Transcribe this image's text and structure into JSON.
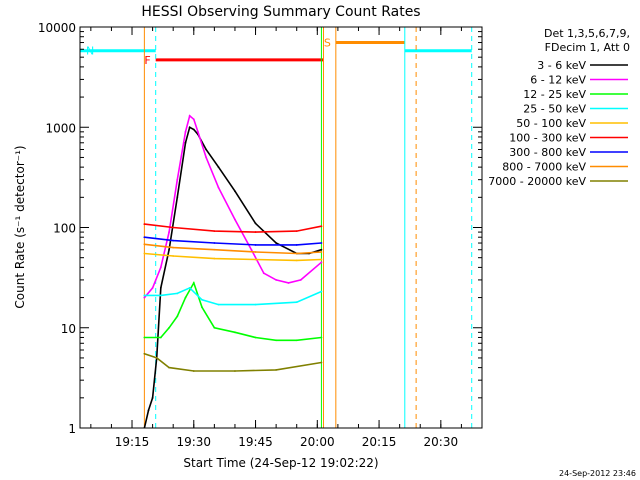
{
  "chart_data": {
    "type": "line",
    "title": "HESSI Observing Summary Count Rates",
    "xlabel": "Start Time (24-Sep-12 19:02:22)",
    "ylabel": "Count Rate (s⁻¹ detector⁻¹)",
    "y_scale": "log",
    "ylim": [
      1,
      10000
    ],
    "xlim": [
      "19:02:22",
      "20:40:00"
    ],
    "x_ticks": [
      "19:15",
      "19:30",
      "19:45",
      "20:00",
      "20:15",
      "20:30"
    ],
    "y_ticks": [
      "1",
      "10",
      "100",
      "1000",
      "10000"
    ],
    "legend_position": "top-right",
    "legend_header": [
      "Det 1,3,5,6,7,9,",
      "FDecim 1, Att 0"
    ],
    "timestamp": "24-Sep-2012 23:46",
    "series": [
      {
        "name": "3 - 6 keV",
        "color": "#000000",
        "x": [
          "19:18",
          "19:19",
          "19:20",
          "19:21",
          "19:22",
          "19:24",
          "19:26",
          "19:28",
          "19:29",
          "19:30",
          "19:31",
          "19:33",
          "19:36",
          "19:40",
          "19:45",
          "19:50",
          "19:55",
          "19:58",
          "20:01"
        ],
        "values": [
          1,
          1.5,
          2,
          5,
          25,
          60,
          200,
          700,
          1000,
          950,
          850,
          600,
          400,
          230,
          110,
          70,
          55,
          55,
          60
        ]
      },
      {
        "name": "6 - 12 keV",
        "color": "#ff00ff",
        "x": [
          "19:18",
          "19:20",
          "19:22",
          "19:24",
          "19:26",
          "19:28",
          "19:29",
          "19:30",
          "19:31",
          "19:33",
          "19:36",
          "19:40",
          "19:44",
          "19:47",
          "19:50",
          "19:53",
          "19:56",
          "20:01"
        ],
        "values": [
          20,
          25,
          40,
          90,
          300,
          900,
          1300,
          1200,
          900,
          500,
          250,
          120,
          60,
          35,
          30,
          28,
          30,
          45
        ]
      },
      {
        "name": "12 - 25 keV",
        "color": "#00ff00",
        "x": [
          "19:18",
          "19:22",
          "19:24",
          "19:26",
          "19:28",
          "19:30",
          "19:32",
          "19:35",
          "19:40",
          "19:45",
          "19:50",
          "19:55",
          "20:01"
        ],
        "values": [
          8,
          8,
          10,
          13,
          20,
          28,
          16,
          10,
          9,
          8,
          7.5,
          7.5,
          8
        ]
      },
      {
        "name": "25 - 50 keV",
        "color": "#00ffff",
        "x": [
          "19:18",
          "19:22",
          "19:26",
          "19:29",
          "19:32",
          "19:36",
          "19:45",
          "19:55",
          "20:01"
        ],
        "values": [
          21,
          21,
          22,
          25,
          19,
          17,
          17,
          18,
          23
        ]
      },
      {
        "name": "50 - 100 keV",
        "color": "#ffbf00",
        "x": [
          "19:18",
          "19:25",
          "19:35",
          "19:45",
          "19:55",
          "20:01"
        ],
        "values": [
          55,
          52,
          49,
          48,
          47,
          48
        ]
      },
      {
        "name": "100 - 300 keV",
        "color": "#ff0000",
        "x": [
          "19:18",
          "19:25",
          "19:35",
          "19:45",
          "19:55",
          "20:01"
        ],
        "values": [
          108,
          100,
          92,
          90,
          92,
          103
        ]
      },
      {
        "name": "300 - 800 keV",
        "color": "#0000ff",
        "x": [
          "19:18",
          "19:25",
          "19:35",
          "19:45",
          "19:55",
          "20:01"
        ],
        "values": [
          80,
          74,
          70,
          67,
          67,
          70
        ]
      },
      {
        "name": "800 - 7000 keV",
        "color": "#ff8c00",
        "x": [
          "19:18",
          "19:25",
          "19:35",
          "19:45",
          "19:55",
          "20:01"
        ],
        "values": [
          68,
          63,
          60,
          57,
          55,
          57
        ]
      },
      {
        "name": "7000 - 20000 keV",
        "color": "#808000",
        "x": [
          "19:18",
          "19:21",
          "19:24",
          "19:30",
          "19:40",
          "19:50",
          "20:01"
        ],
        "values": [
          5.5,
          5,
          4,
          3.7,
          3.7,
          3.8,
          4.5
        ]
      }
    ],
    "flags": [
      {
        "label": "N",
        "color": "#00ffff",
        "value": 5800,
        "segments": [
          [
            "19:02:22",
            "19:20:45"
          ],
          [
            "20:21:15",
            "20:37:30"
          ]
        ]
      },
      {
        "label": "F",
        "color": "#ff0000",
        "value": 4700,
        "segments": [
          [
            "19:20:45",
            "20:01:30"
          ]
        ]
      },
      {
        "label": "S",
        "color": "#ff8c00",
        "value": 7000,
        "segments": [
          [
            "20:04:30",
            "20:21:15"
          ]
        ]
      }
    ],
    "markers": [
      {
        "time": "19:02:22",
        "color": "#00ffff",
        "style": "solid"
      },
      {
        "time": "19:20:45",
        "color": "#00ffff",
        "style": "dashed"
      },
      {
        "time": "20:01:30",
        "color": "#ff8c00",
        "style": "solid"
      },
      {
        "time": "20:04:30",
        "color": "#ff8c00",
        "style": "solid"
      },
      {
        "time": "20:21:15",
        "color": "#00ffff",
        "style": "solid"
      },
      {
        "time": "20:24:00",
        "color": "#ff8c00",
        "style": "dashed"
      },
      {
        "time": "20:37:30",
        "color": "#00ffff",
        "style": "dashed"
      },
      {
        "time": "19:18:00",
        "color": "#ff8c00",
        "style": "solid"
      },
      {
        "time": "20:01:00",
        "color": "#00ff00",
        "style": "solid"
      }
    ]
  }
}
